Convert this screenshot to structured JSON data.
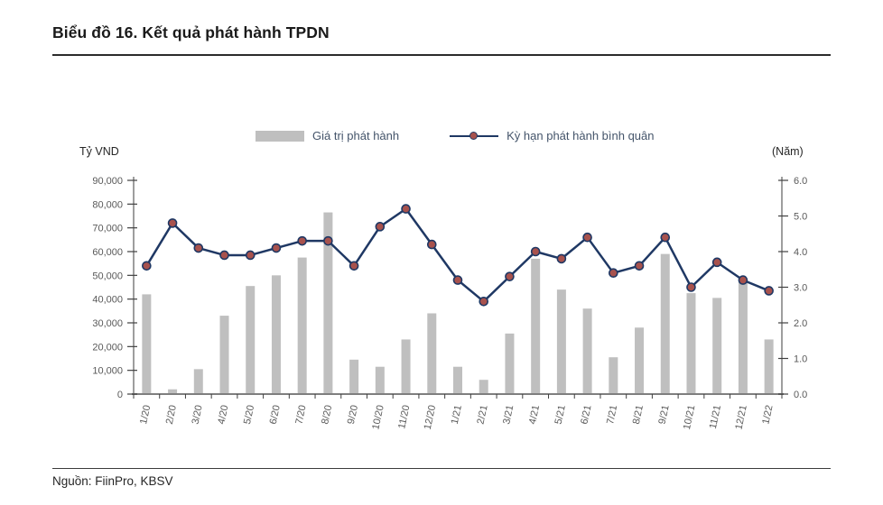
{
  "page": {
    "title": "Biểu đồ 16. Kết quả phát hành TPDN",
    "source": "Nguồn: FiinPro, KBSV"
  },
  "legend": {
    "bar_label": "Giá trị phát hành",
    "line_label": "Kỳ hạn phát hành bình quân"
  },
  "chart_data": {
    "type": "bar",
    "subtype": "combo-bar-line",
    "title": "Biểu đồ 16. Kết quả phát hành TPDN",
    "categories": [
      "1/20",
      "2/20",
      "3/20",
      "4/20",
      "5/20",
      "6/20",
      "7/20",
      "8/20",
      "9/20",
      "10/20",
      "11/20",
      "12/20",
      "1/21",
      "2/21",
      "3/21",
      "4/21",
      "5/21",
      "6/21",
      "7/21",
      "8/21",
      "9/21",
      "10/21",
      "11/21",
      "12/21",
      "1/22"
    ],
    "series": [
      {
        "name": "Giá trị phát hành",
        "type": "bar",
        "axis": "left",
        "values": [
          42000,
          2000,
          10500,
          33000,
          45500,
          50000,
          57500,
          76500,
          14500,
          11500,
          23000,
          34000,
          11500,
          6000,
          25500,
          57000,
          44000,
          36000,
          15500,
          28000,
          59000,
          42500,
          40500,
          48000,
          23000
        ]
      },
      {
        "name": "Kỳ hạn phát hành bình quân",
        "type": "line",
        "axis": "right",
        "values": [
          3.6,
          4.8,
          4.1,
          3.9,
          3.9,
          4.1,
          4.3,
          4.3,
          3.6,
          4.7,
          5.2,
          4.2,
          3.2,
          2.6,
          3.3,
          4.0,
          3.8,
          4.4,
          3.4,
          3.6,
          4.4,
          3.0,
          3.7,
          3.2,
          2.9
        ]
      }
    ],
    "left_axis": {
      "label": "Tỷ VND",
      "min": 0,
      "max": 90000,
      "step": 10000,
      "ticks": [
        "0",
        "10,000",
        "20,000",
        "30,000",
        "40,000",
        "50,000",
        "60,000",
        "70,000",
        "80,000",
        "90,000"
      ]
    },
    "right_axis": {
      "label": "(Năm)",
      "min": 0,
      "max": 6,
      "step": 1,
      "ticks": [
        "0.0",
        "1.0",
        "2.0",
        "3.0",
        "4.0",
        "5.0",
        "6.0"
      ]
    },
    "grid": "off",
    "legend_position": "top",
    "colors": {
      "bar": "#BFBFBF",
      "line": "#1F3864",
      "marker": "#A8524D",
      "axis": "#7F7F7F",
      "tick": "#404040",
      "tick_label": "#595959"
    }
  }
}
